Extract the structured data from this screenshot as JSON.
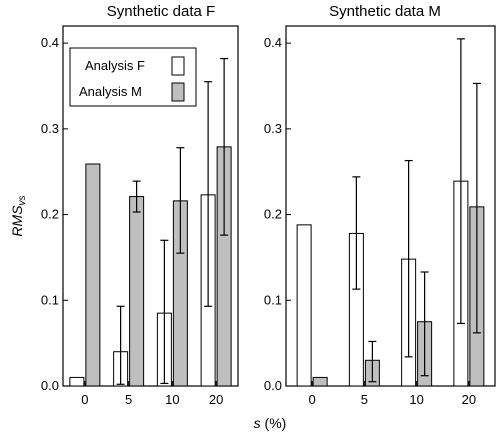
{
  "chart_data": [
    {
      "type": "bar",
      "title": "Synthetic data F",
      "ylabel": "RMS",
      "ylabel_subscript": "vs",
      "xlabel": "s",
      "xlabel_unit": " (%)",
      "categories": [
        "0",
        "5",
        "10",
        "20"
      ],
      "ylim": [
        0,
        0.42
      ],
      "yticks": [
        "0.0",
        "0.1",
        "0.2",
        "0.3",
        "0.4"
      ],
      "ytick_values": [
        0,
        0.1,
        0.2,
        0.3,
        0.4
      ],
      "series": [
        {
          "name": "Analysis F",
          "color": "#ffffff",
          "values": [
            0.01,
            0.04,
            0.085,
            0.223
          ],
          "err_low": [
            null,
            0.002,
            0.003,
            0.093
          ],
          "err_high": [
            null,
            0.093,
            0.17,
            0.355
          ]
        },
        {
          "name": "Analysis M",
          "color": "#bfbfbf",
          "values": [
            0.259,
            0.221,
            0.216,
            0.279
          ],
          "err_low": [
            null,
            0.203,
            0.155,
            0.176
          ],
          "err_high": [
            null,
            0.239,
            0.278,
            0.382
          ]
        }
      ],
      "legend_position": "top-left"
    },
    {
      "type": "bar",
      "title": "Synthetic data M",
      "categories": [
        "0",
        "5",
        "10",
        "20"
      ],
      "ylim": [
        0,
        0.42
      ],
      "yticks": [
        "0.0",
        "0.1",
        "0.2",
        "0.3",
        "0.4"
      ],
      "ytick_values": [
        0,
        0.1,
        0.2,
        0.3,
        0.4
      ],
      "series": [
        {
          "name": "Analysis F",
          "color": "#ffffff",
          "values": [
            0.188,
            0.178,
            0.148,
            0.239
          ],
          "err_low": [
            null,
            0.113,
            0.034,
            0.073
          ],
          "err_high": [
            null,
            0.244,
            0.263,
            0.405
          ]
        },
        {
          "name": "Analysis M",
          "color": "#bfbfbf",
          "values": [
            0.01,
            0.03,
            0.075,
            0.209
          ],
          "err_low": [
            null,
            0.005,
            0.012,
            0.062
          ],
          "err_high": [
            null,
            0.052,
            0.133,
            0.353
          ]
        }
      ]
    }
  ]
}
